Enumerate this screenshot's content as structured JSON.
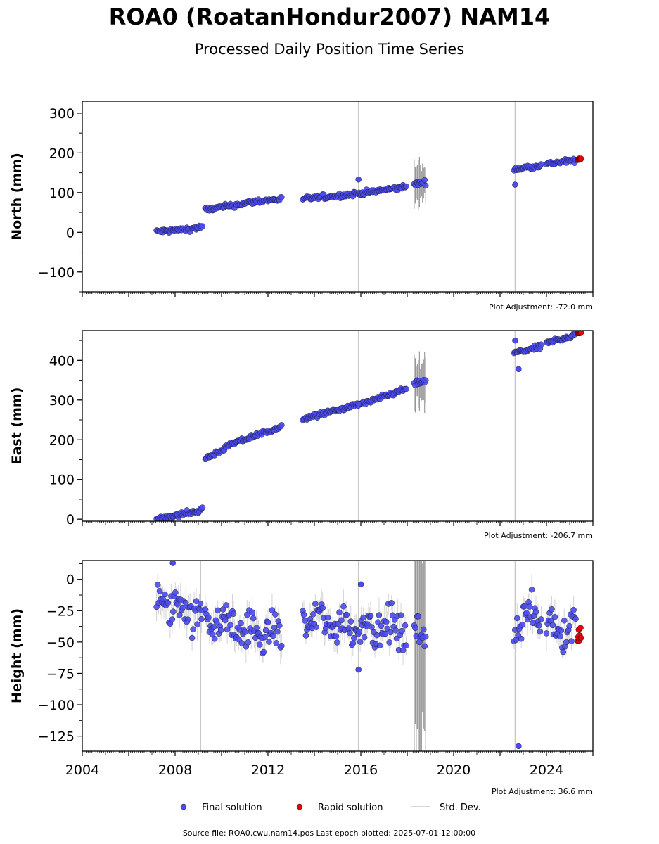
{
  "title": "ROA0 (RoatanHondur2007) NAM14",
  "subtitle": "Processed Daily Position Time Series",
  "legend": {
    "final": "Final solution",
    "rapid": "Rapid solution",
    "std": "Std. Dev."
  },
  "source": "Source file: ROA0.cwu.nam14.pos  Last epoch plotted: 2025-07-01 12:00:00",
  "colors": {
    "final": "#4b4bf0",
    "rapid": "#e8000b",
    "std": "#b0b0b0"
  },
  "chart_data": [
    {
      "type": "scatter",
      "ylabel": "North (mm)",
      "adjustment": "Plot Adjustment: -72.0 mm",
      "xlim": [
        2004.0,
        2026.0
      ],
      "ylim": [
        -150,
        330
      ],
      "yticks": [
        -100,
        0,
        100,
        200,
        300
      ],
      "ytick_labels": [
        "−100",
        "0",
        "100",
        "200",
        "300"
      ],
      "segments": [
        {
          "t": [
            2007.2,
            2008.0,
            2008.8,
            2009.2
          ],
          "y": [
            2,
            5,
            10,
            14
          ]
        },
        {
          "t": [
            2009.3,
            2010.5,
            2011.5,
            2012.6
          ],
          "y": [
            56,
            68,
            78,
            84
          ]
        },
        {
          "t": [
            2013.5,
            2015.0,
            2016.5,
            2018.0
          ],
          "y": [
            84,
            92,
            102,
            115
          ]
        },
        {
          "t": [
            2018.3,
            2018.8
          ],
          "y": [
            122,
            126
          ]
        },
        {
          "t": [
            2022.6,
            2023.8
          ],
          "y": [
            158,
            170
          ]
        },
        {
          "t": [
            2024.0,
            2025.3
          ],
          "y": [
            172,
            182
          ]
        }
      ],
      "rapid": {
        "t": [
          2025.35,
          2025.5
        ],
        "y": [
          183,
          184
        ]
      },
      "outliers": {
        "t": [
          2015.9,
          2022.65
        ],
        "y": [
          133,
          120
        ]
      }
    },
    {
      "type": "scatter",
      "ylabel": "East (mm)",
      "adjustment": "Plot Adjustment: -206.7 mm",
      "xlim": [
        2004.0,
        2026.0
      ],
      "ylim": [
        -5,
        475
      ],
      "yticks": [
        0,
        100,
        200,
        300,
        400
      ],
      "ytick_labels": [
        "0",
        "100",
        "200",
        "300",
        "400"
      ],
      "segments": [
        {
          "t": [
            2007.2,
            2008.0,
            2008.8,
            2009.2
          ],
          "y": [
            2,
            10,
            18,
            26
          ]
        },
        {
          "t": [
            2009.3,
            2010.5,
            2011.5,
            2012.6
          ],
          "y": [
            152,
            190,
            212,
            232
          ]
        },
        {
          "t": [
            2013.5,
            2015.0,
            2016.5,
            2018.0
          ],
          "y": [
            252,
            275,
            298,
            330
          ]
        },
        {
          "t": [
            2018.3,
            2018.8
          ],
          "y": [
            340,
            348
          ]
        },
        {
          "t": [
            2022.6,
            2023.8
          ],
          "y": [
            418,
            435
          ]
        },
        {
          "t": [
            2024.0,
            2025.3
          ],
          "y": [
            444,
            465
          ]
        }
      ],
      "rapid": {
        "t": [
          2025.35,
          2025.5
        ],
        "y": [
          468,
          470
        ]
      },
      "outliers": {
        "t": [
          2015.9,
          2022.65,
          2022.8
        ],
        "y": [
          290,
          450,
          378
        ]
      }
    },
    {
      "type": "scatter",
      "ylabel": "Height (mm)",
      "adjustment": "Plot Adjustment: 36.6 mm",
      "xlim": [
        2004.0,
        2026.0
      ],
      "ylim": [
        -137,
        15
      ],
      "yticks": [
        -125,
        -100,
        -75,
        -50,
        -25,
        0
      ],
      "ytick_labels": [
        "−125",
        "−100",
        "−75",
        "−50",
        "−25",
        "0"
      ],
      "xticks": [
        2004,
        2008,
        2012,
        2016,
        2020,
        2024
      ],
      "xtick_labels": [
        "2004",
        "2008",
        "2012",
        "2016",
        "2020",
        "2024"
      ],
      "segments": [
        {
          "t": [
            2007.2,
            2008.0,
            2008.8,
            2009.2
          ],
          "y": [
            -15,
            -22,
            -25,
            -28
          ]
        },
        {
          "t": [
            2009.3,
            2010.5,
            2011.5,
            2012.6
          ],
          "y": [
            -30,
            -38,
            -42,
            -45
          ]
        },
        {
          "t": [
            2013.5,
            2015.0,
            2016.5,
            2018.0
          ],
          "y": [
            -32,
            -36,
            -38,
            -40
          ]
        },
        {
          "t": [
            2018.3,
            2018.8
          ],
          "y": [
            -40,
            -42
          ]
        },
        {
          "t": [
            2022.6,
            2023.8
          ],
          "y": [
            -32,
            -30
          ]
        },
        {
          "t": [
            2024.0,
            2025.3
          ],
          "y": [
            -36,
            -40
          ]
        }
      ],
      "rapid": {
        "t": [
          2025.35,
          2025.5
        ],
        "y": [
          -44,
          -42
        ]
      },
      "outliers": {
        "t": [
          2007.9,
          2015.9,
          2016.0,
          2022.8
        ],
        "y": [
          13,
          -72,
          -4,
          -133
        ]
      }
    }
  ]
}
